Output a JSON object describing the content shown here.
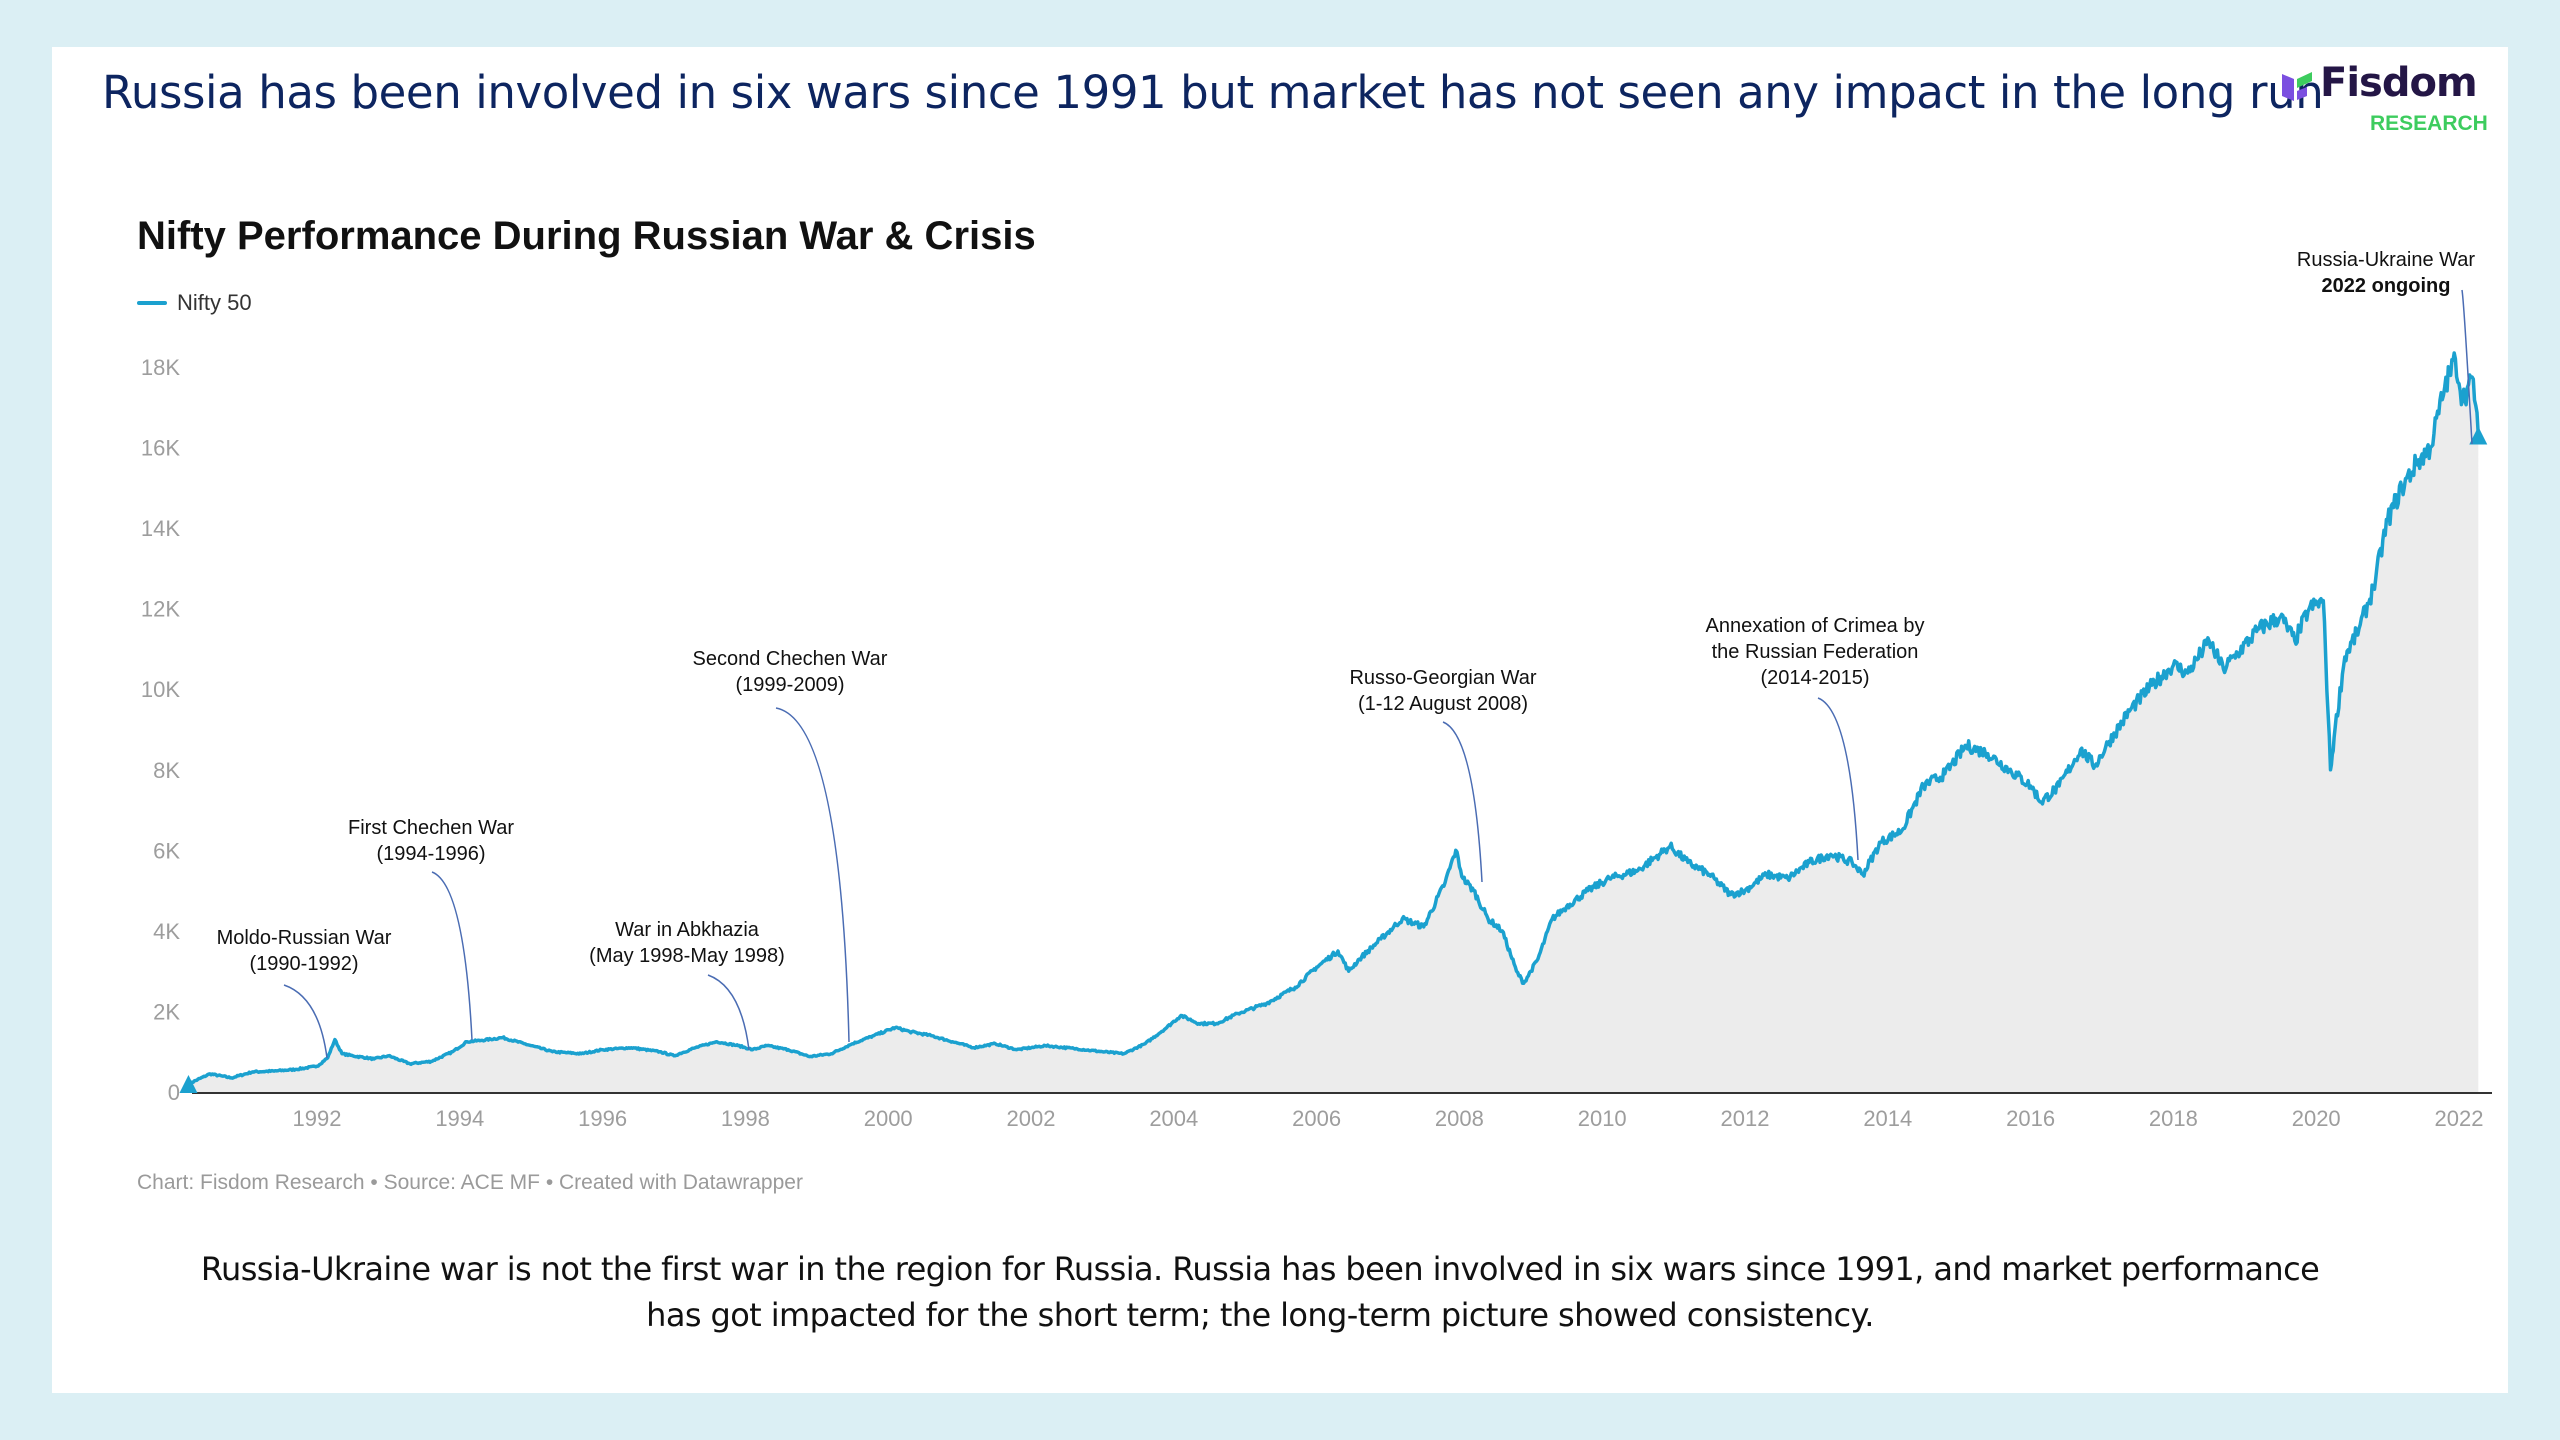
{
  "page": {
    "headline": "Russia has been involved in six wars since 1991 but market has not seen any impact in the long run",
    "logo": {
      "name": "Fisdom",
      "sub": "RESEARCH",
      "colors": {
        "purple": "#7b4fe0",
        "green": "#3dcc5e",
        "text": "#241646"
      }
    },
    "caption": "Russia-Ukraine war is not the first war in the region for Russia. Russia has been involved in six wars since 1991, and market performance has got impacted for the short term; the long-term picture showed consistency.",
    "source": "Chart: Fisdom Research • Source: ACE MF • Created with Datawrapper",
    "colors": {
      "background": "#dbeff4",
      "card": "#ffffff",
      "headline": "#0d2560",
      "line": "#1ba1cf",
      "area": "#ececec",
      "leader": "#4a6cb3"
    }
  },
  "chart_data": {
    "type": "area",
    "title": "Nifty Performance During Russian War & Crisis",
    "legend": [
      {
        "name": "Nifty 50",
        "color": "#1ba1cf"
      }
    ],
    "legend_position": "top-left",
    "xlabel": "",
    "ylabel": "",
    "xlim": [
      1990.1,
      2022.3
    ],
    "ylim": [
      0,
      18000
    ],
    "x_ticks": [
      "1992",
      "1994",
      "1996",
      "1998",
      "2000",
      "2002",
      "2004",
      "2006",
      "2008",
      "2010",
      "2012",
      "2014",
      "2016",
      "2018",
      "2020",
      "2022"
    ],
    "y_ticks": [
      {
        "value": 0,
        "label": "0"
      },
      {
        "value": 2000,
        "label": "2K"
      },
      {
        "value": 4000,
        "label": "4K"
      },
      {
        "value": 6000,
        "label": "6K"
      },
      {
        "value": 8000,
        "label": "8K"
      },
      {
        "value": 10000,
        "label": "10K"
      },
      {
        "value": 12000,
        "label": "12K"
      },
      {
        "value": 14000,
        "label": "14K"
      },
      {
        "value": 16000,
        "label": "16K"
      },
      {
        "value": 18000,
        "label": "18K"
      }
    ],
    "grid": false,
    "series": [
      {
        "name": "Nifty 50",
        "x": [
          1990.2,
          1990.5,
          1990.8,
          1991.1,
          1991.4,
          1991.7,
          1992.0,
          1992.15,
          1992.25,
          1992.35,
          1992.5,
          1992.8,
          1993.0,
          1993.3,
          1993.6,
          1993.9,
          1994.1,
          1994.3,
          1994.6,
          1994.9,
          1995.3,
          1995.7,
          1996.0,
          1996.4,
          1996.8,
          1997.0,
          1997.3,
          1997.6,
          1997.9,
          1998.1,
          1998.3,
          1998.6,
          1998.9,
          1999.2,
          1999.5,
          1999.8,
          2000.1,
          2000.3,
          2000.6,
          2000.9,
          2001.2,
          2001.5,
          2001.8,
          2002.2,
          2002.6,
          2003.0,
          2003.3,
          2003.6,
          2003.9,
          2004.1,
          2004.35,
          2004.6,
          2004.9,
          2005.3,
          2005.7,
          2006.0,
          2006.3,
          2006.45,
          2006.6,
          2006.9,
          2007.2,
          2007.5,
          2007.8,
          2007.95,
          2008.05,
          2008.2,
          2008.4,
          2008.6,
          2008.8,
          2008.9,
          2009.1,
          2009.3,
          2009.5,
          2009.8,
          2010.1,
          2010.5,
          2010.8,
          2010.95,
          2011.2,
          2011.5,
          2011.8,
          2012.0,
          2012.3,
          2012.6,
          2012.9,
          2013.2,
          2013.5,
          2013.65,
          2013.9,
          2014.2,
          2014.5,
          2014.8,
          2015.1,
          2015.4,
          2015.7,
          2016.0,
          2016.15,
          2016.4,
          2016.7,
          2016.9,
          2017.1,
          2017.4,
          2017.7,
          2018.0,
          2018.2,
          2018.5,
          2018.7,
          2018.9,
          2019.2,
          2019.5,
          2019.7,
          2019.9,
          2020.1,
          2020.2,
          2020.25,
          2020.4,
          2020.6,
          2020.8,
          2021.0,
          2021.2,
          2021.4,
          2021.6,
          2021.8,
          2021.95,
          2022.05,
          2022.2,
          2022.27
        ],
        "y": [
          200,
          450,
          350,
          500,
          520,
          560,
          640,
          850,
          1300,
          950,
          900,
          820,
          900,
          700,
          760,
          1000,
          1250,
          1280,
          1350,
          1200,
          1000,
          950,
          1050,
          1100,
          1000,
          900,
          1100,
          1250,
          1150,
          1050,
          1150,
          1050,
          880,
          950,
          1200,
          1400,
          1600,
          1500,
          1400,
          1250,
          1100,
          1200,
          1050,
          1150,
          1080,
          1000,
          950,
          1200,
          1600,
          1900,
          1700,
          1700,
          1950,
          2200,
          2600,
          3100,
          3500,
          3000,
          3300,
          3800,
          4300,
          4100,
          5200,
          6000,
          5300,
          5000,
          4300,
          4000,
          3000,
          2700,
          3300,
          4300,
          4600,
          5000,
          5300,
          5500,
          5900,
          6100,
          5700,
          5400,
          4900,
          5000,
          5400,
          5300,
          5700,
          5900,
          5700,
          5400,
          6200,
          6500,
          7600,
          7900,
          8600,
          8400,
          8000,
          7600,
          7200,
          7600,
          8500,
          8100,
          8700,
          9500,
          10100,
          10600,
          10400,
          11200,
          10500,
          10900,
          11500,
          11800,
          11200,
          12000,
          12200,
          8000,
          8800,
          10800,
          11500,
          12500,
          14200,
          15000,
          15600,
          16000,
          17500,
          18200,
          17200,
          17700,
          16300
        ]
      }
    ],
    "markers": [
      {
        "x": 1990.2,
        "y": 200,
        "shape": "triangle"
      },
      {
        "x": 2022.27,
        "y": 16300,
        "shape": "triangle"
      }
    ],
    "annotations": [
      {
        "lines": [
          "Moldo-Russian War",
          "(1990-1992)"
        ],
        "target_x": 1992.2,
        "target_y": 950
      },
      {
        "lines": [
          "First Chechen War",
          "(1994-1996)"
        ],
        "target_x": 1994.2,
        "target_y": 1300
      },
      {
        "lines": [
          "War in Abkhazia",
          "(May 1998-May 1998)"
        ],
        "target_x": 1998.05,
        "target_y": 1050
      },
      {
        "lines": [
          "Second Chechen War",
          "(1999-2009)"
        ],
        "target_x": 1999.75,
        "target_y": 1250
      },
      {
        "lines": [
          "Russo-Georgian War",
          "(1-12 August 2008)"
        ],
        "target_x": 2008.35,
        "target_y": 5100
      },
      {
        "lines": [
          "Annexation of Crimea by",
          "the Russian Federation",
          "(2014-2015)"
        ],
        "target_x": 2013.7,
        "target_y": 5600
      },
      {
        "lines": [
          "Russia-Ukraine War",
          "2022 ongoing"
        ],
        "bold_line": 1,
        "target_x": 2022.2,
        "target_y": 16100
      }
    ]
  }
}
